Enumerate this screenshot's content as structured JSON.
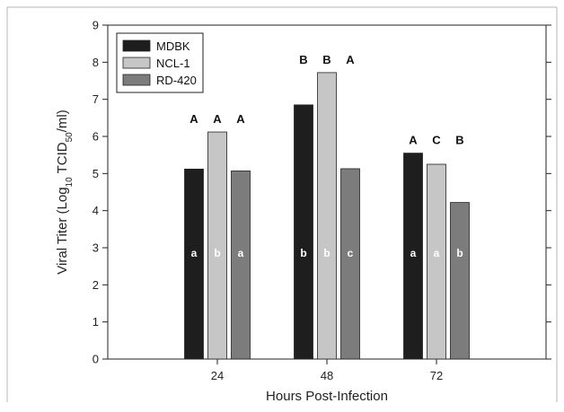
{
  "chart_data": {
    "type": "bar",
    "categories": [
      "24",
      "48",
      "72"
    ],
    "series": [
      {
        "name": "MDBK",
        "color": "#1e1e1e",
        "values": [
          5.12,
          6.85,
          5.55
        ],
        "top_letters": [
          "A",
          "B",
          "A"
        ],
        "inner_letters": [
          "a",
          "b",
          "a"
        ]
      },
      {
        "name": "NCL-1",
        "color": "#c6c6c6",
        "values": [
          6.12,
          7.72,
          5.25
        ],
        "top_letters": [
          "A",
          "B",
          "C"
        ],
        "inner_letters": [
          "b",
          "b",
          "a"
        ]
      },
      {
        "name": "RD-420",
        "color": "#7c7c7c",
        "values": [
          5.07,
          5.13,
          4.22
        ],
        "top_letters": [
          "A",
          "A",
          "B"
        ],
        "inner_letters": [
          "a",
          "c",
          "b"
        ]
      }
    ],
    "xlabel": "Hours Post-Infection",
    "ylabel_parts": {
      "pre": "Viral Titer (Log",
      "sub1": "10",
      "mid": " TCID",
      "sub2": "50",
      "post": "/ml)"
    },
    "ylim": [
      0,
      9
    ],
    "yticks": [
      0,
      1,
      2,
      3,
      4,
      5,
      6,
      7,
      8,
      9
    ],
    "legend_position": "top-left",
    "grid": false
  }
}
